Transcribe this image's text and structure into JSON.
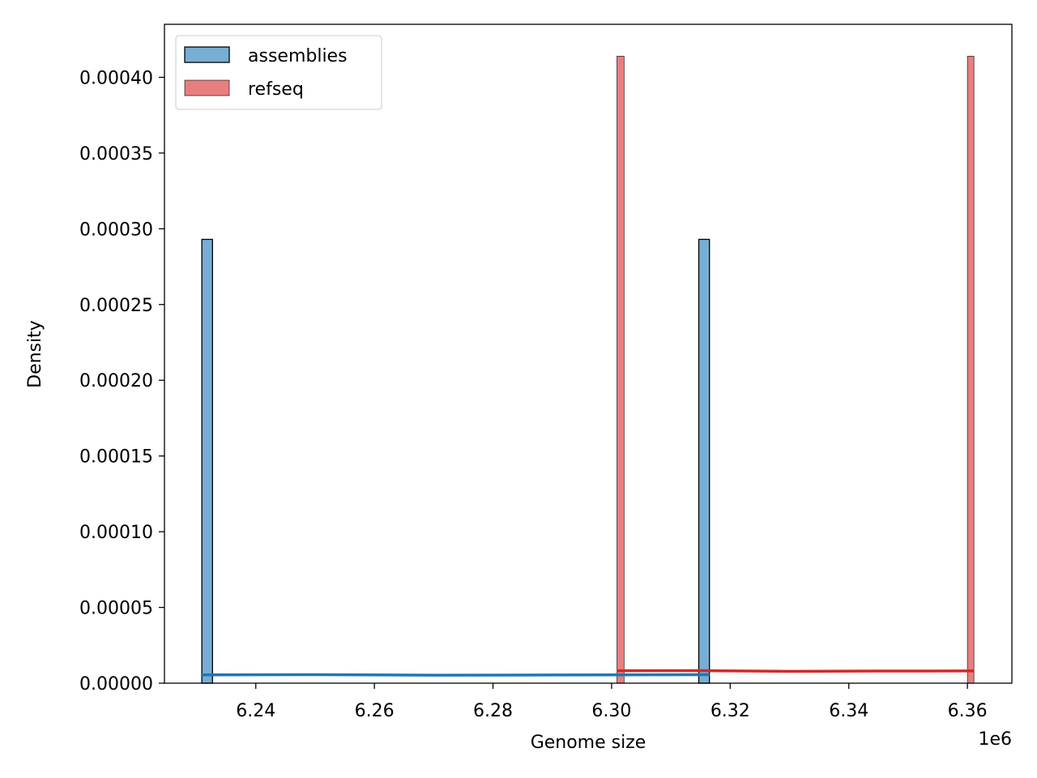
{
  "chart_data": {
    "type": "histogram",
    "title": "",
    "xlabel": "Genome size",
    "ylabel": "Density",
    "x_offset_label": "1e6",
    "xlim": [
      6.2246,
      6.3675
    ],
    "ylim": [
      0,
      0.000435
    ],
    "x_unit_scale": 1000000,
    "xticks": [
      6.24,
      6.26,
      6.28,
      6.3,
      6.32,
      6.34,
      6.36
    ],
    "xtick_labels": [
      "6.24",
      "6.26",
      "6.28",
      "6.30",
      "6.32",
      "6.34",
      "6.36"
    ],
    "yticks": [
      0,
      5e-05,
      0.0001,
      0.00015,
      0.0002,
      0.00025,
      0.0003,
      0.00035,
      0.0004
    ],
    "ytick_labels": [
      "0.00000",
      "0.00005",
      "0.00010",
      "0.00015",
      "0.00020",
      "0.00025",
      "0.00030",
      "0.00035",
      "0.00040"
    ],
    "grid": false,
    "legend": {
      "placement": "top-left",
      "entries": [
        "assemblies",
        "refseq"
      ]
    },
    "series": [
      {
        "name": "assemblies",
        "color": "#1f77b4",
        "fill": "#77aed4",
        "bars": [
          {
            "x0": 6.2309,
            "x1": 6.2327,
            "density": 0.000293
          },
          {
            "x0": 6.3147,
            "x1": 6.3165,
            "density": 0.000293
          }
        ],
        "kde": {
          "x": [
            6.2309,
            6.25,
            6.27,
            6.29,
            6.3165
          ],
          "y": [
            5.5e-06,
            5.6e-06,
            5.3e-06,
            5.4e-06,
            5.6e-06
          ]
        }
      },
      {
        "name": "refseq",
        "color": "#d62728",
        "fill": "#e87e80",
        "bars": [
          {
            "x0": 6.3009,
            "x1": 6.3021,
            "density": 0.000414
          },
          {
            "x0": 6.36,
            "x1": 6.3611,
            "density": 0.000414
          }
        ],
        "kde": {
          "x": [
            6.3009,
            6.315,
            6.33,
            6.345,
            6.3611
          ],
          "y": [
            8.2e-06,
            8.3e-06,
            7.8e-06,
            8e-06,
            8.1e-06
          ]
        }
      }
    ]
  }
}
